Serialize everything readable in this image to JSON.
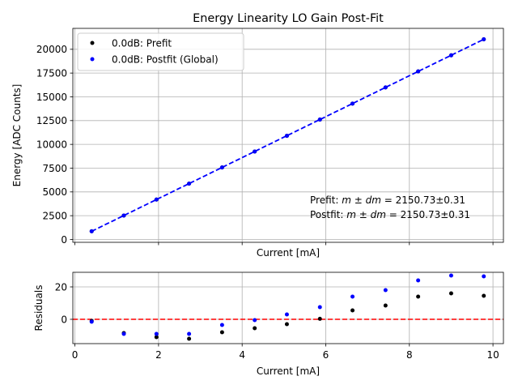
{
  "chart_data": [
    {
      "type": "scatter",
      "title": "Energy Linearity LO Gain Post-Fit",
      "xlabel": "Current [mA]",
      "ylabel": "Energy [ADC Counts]",
      "xlim": [
        -0.05,
        10.25
      ],
      "ylim": [
        -300,
        22200
      ],
      "xticks": [
        0,
        2,
        4,
        6,
        8,
        10
      ],
      "yticks": [
        0,
        2500,
        5000,
        7500,
        10000,
        12500,
        15000,
        17500,
        20000
      ],
      "ytick_labels": [
        "0",
        "2500",
        "5000",
        "7500",
        "10000",
        "12500",
        "15000",
        "17500",
        "20000"
      ],
      "show_x_tick_labels": false,
      "grid": true,
      "legend_position": "top-left",
      "series": [
        {
          "name": "0.0dB: Prefit",
          "color": "#000000",
          "marker": "dot",
          "x": [
            0.4,
            1.17,
            1.95,
            2.73,
            3.52,
            4.3,
            5.07,
            5.86,
            6.64,
            7.43,
            8.21,
            9.0,
            9.78
          ],
          "y": [
            860,
            2517,
            4195,
            5870,
            7572,
            9248,
            10902,
            12607,
            14286,
            15992,
            17670,
            19366,
            21050
          ]
        },
        {
          "name": "0.0dB: Postfit (Global)",
          "color": "#0000ff",
          "marker": "dot",
          "x": [
            0.4,
            1.17,
            1.95,
            2.73,
            3.52,
            4.3,
            5.07,
            5.86,
            6.64,
            7.43,
            8.21,
            9.0,
            9.78
          ],
          "y": [
            860,
            2517,
            4195,
            5870,
            7572,
            9248,
            10902,
            12607,
            14286,
            15992,
            17670,
            19366,
            21050
          ]
        }
      ],
      "fit_line": {
        "color": "#0000ff",
        "style": "dashed",
        "x": [
          0.4,
          9.78
        ],
        "y": [
          860,
          21050
        ]
      },
      "annotations": [
        {
          "prefix": "Prefit: ",
          "math": "m ± dm",
          "suffix": " = 2150.73±0.31"
        },
        {
          "prefix": "Postfit: ",
          "math": "m ± dm",
          "suffix": " = 2150.73±0.31"
        }
      ]
    },
    {
      "type": "scatter",
      "title": "",
      "xlabel": "Current [mA]",
      "ylabel": "Residuals",
      "xlim": [
        -0.05,
        10.25
      ],
      "ylim": [
        -15,
        29
      ],
      "xticks": [
        0,
        2,
        4,
        6,
        8,
        10
      ],
      "yticks": [
        0,
        20
      ],
      "ytick_labels": [
        "0",
        "20"
      ],
      "show_x_tick_labels": true,
      "grid": true,
      "series": [
        {
          "name": "0.0dB: Prefit",
          "color": "#000000",
          "marker": "dot",
          "x": [
            0.4,
            1.17,
            1.95,
            2.73,
            3.52,
            4.3,
            5.07,
            5.86,
            6.64,
            7.43,
            8.21,
            9.0,
            9.78
          ],
          "y": [
            -1,
            -8.5,
            -11,
            -12,
            -8,
            -5.5,
            -3,
            0.3,
            5.5,
            8.5,
            14,
            16,
            14.5
          ]
        },
        {
          "name": "0.0dB: Postfit (Global)",
          "color": "#0000ff",
          "marker": "dot",
          "x": [
            0.4,
            1.17,
            1.95,
            2.73,
            3.52,
            4.3,
            5.07,
            5.86,
            6.64,
            7.43,
            8.21,
            9.0,
            9.78
          ],
          "y": [
            -1.5,
            -9,
            -9,
            -9,
            -3.5,
            -0.5,
            3,
            7.5,
            14,
            18,
            24,
            27,
            26.5
          ]
        }
      ],
      "reference_line": {
        "y": 0,
        "color": "#ff0000",
        "style": "dashed"
      }
    }
  ]
}
